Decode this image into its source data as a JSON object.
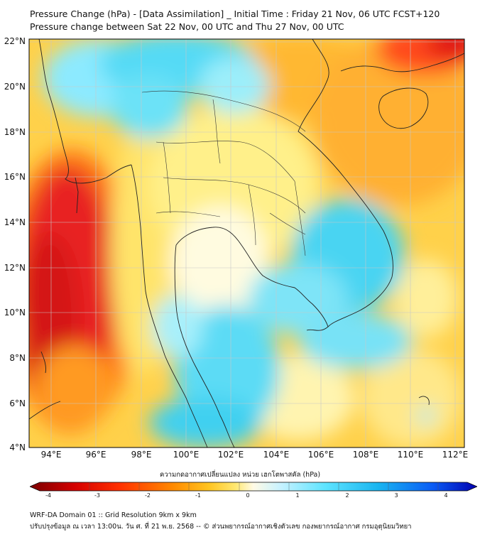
{
  "header": {
    "title_line1": "Pressure Change (hPa) - [Data Assimilation] _ Initial Time : Friday 21 Nov, 06 UTC FCST+120",
    "title_line2": "Pressure change between Sat 22 Nov, 00 UTC and Thu 27 Nov, 00 UTC"
  },
  "map": {
    "lat_labels": [
      "22°N",
      "20°N",
      "18°N",
      "16°N",
      "14°N",
      "12°N",
      "10°N",
      "8°N",
      "6°N",
      "4°N"
    ],
    "lon_labels": [
      "94°E",
      "96°E",
      "98°E",
      "100°E",
      "102°E",
      "104°E",
      "106°E",
      "108°E",
      "110°E",
      "112°E"
    ],
    "grid": true,
    "colors": {
      "strong_rise": "#e41a1a",
      "rise": "#ffa51e",
      "weak_rise": "#ffe060",
      "neutral": "#fffde0",
      "fall": "#4fd7f3",
      "coastline": "#222222"
    }
  },
  "colorbar": {
    "title": "ความกดอากาศเปลี่ยนแปลง หน่วย เฮกโตพาสคัล (hPa)",
    "ticks": [
      "-4",
      "-3",
      "-2",
      "-1",
      "0",
      "1",
      "2",
      "3",
      "4"
    ],
    "colors": [
      "#7a0000",
      "#d40000",
      "#ff3000",
      "#ff8a00",
      "#ffc420",
      "#ffe872",
      "#fffbe6",
      "#c8f2ff",
      "#5ee4ff",
      "#19b4f0",
      "#0a5cf5",
      "#0000b0"
    ]
  },
  "footer": {
    "line1": "WRF-DA Domain 01 :: Grid Resolution 9km x 9km",
    "line2": "ปรับปรุงข้อมูล ณ เวลา 13:00น. วัน ศ. ที่ 21 พ.ย. 2568 -- © ส่วนพยากรณ์อากาศเชิงตัวเลข กองพยากรณ์อากาศ กรมอุตุนิยมวิทยา"
  }
}
